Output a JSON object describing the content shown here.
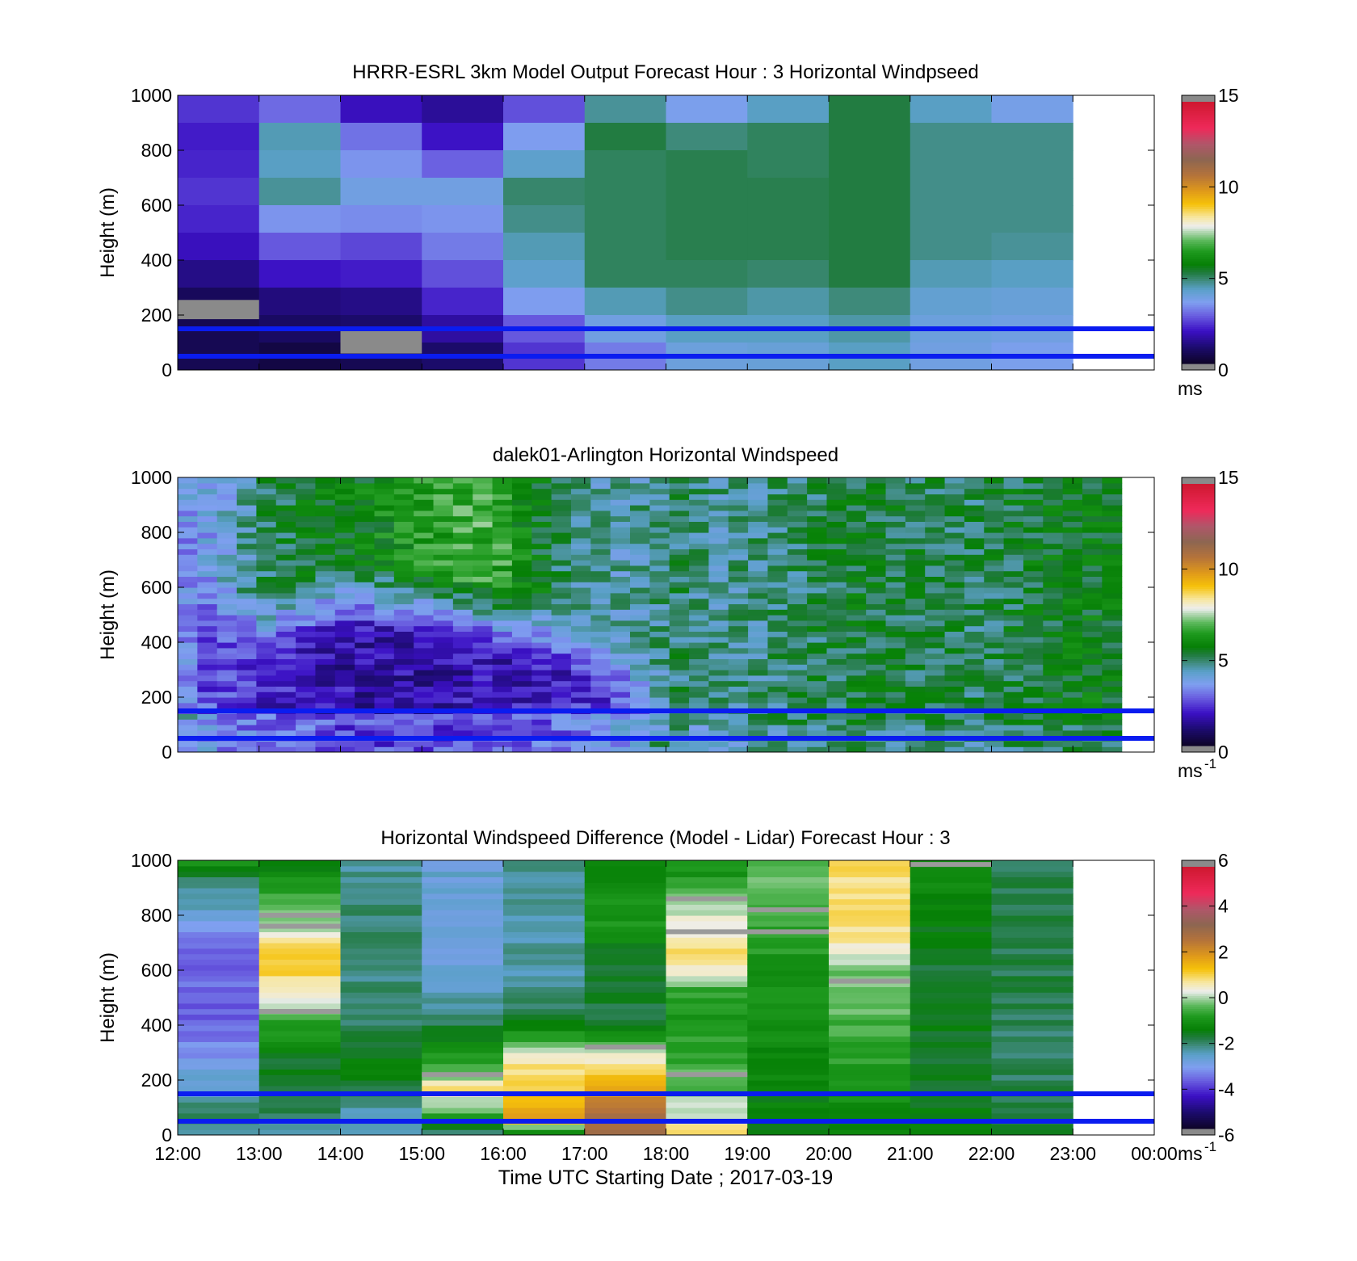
{
  "chart_data": [
    {
      "type": "heatmap",
      "title": "HRRR-ESRL 3km Model Output   Forecast Hour : 3 Horizontal Windpseed",
      "ylabel": "Height (m)",
      "ylim": [
        0,
        1000
      ],
      "yticks": [
        "0",
        "200",
        "400",
        "600",
        "800",
        "1000"
      ],
      "x_categories": [
        "12:00",
        "13:00",
        "14:00",
        "15:00",
        "16:00",
        "17:00",
        "18:00",
        "19:00",
        "20:00",
        "21:00",
        "22:00",
        "23:00"
      ],
      "colorbar": {
        "range": [
          0,
          15
        ],
        "ticks": [
          "0",
          "5",
          "10",
          "15"
        ],
        "unit": "ms",
        "unit_sup": ""
      },
      "reference_lines_m": [
        50,
        150
      ],
      "cells": [
        {
          "y0": 900,
          "y1": 1000,
          "values": [
            2.3,
            2.9,
            1.8,
            1.4,
            2.6,
            4.6,
            3.6,
            4.3,
            5.2,
            4.3,
            3.7
          ]
        },
        {
          "y0": 800,
          "y1": 900,
          "values": [
            2.0,
            4.4,
            3.0,
            1.9,
            3.5,
            5.2,
            4.8,
            5.0,
            5.2,
            4.7,
            4.7
          ]
        },
        {
          "y0": 700,
          "y1": 800,
          "values": [
            2.1,
            4.3,
            3.4,
            2.8,
            4.2,
            5.0,
            5.1,
            5.0,
            5.2,
            4.7,
            4.7
          ]
        },
        {
          "y0": 600,
          "y1": 700,
          "values": [
            2.3,
            4.6,
            3.8,
            3.8,
            4.9,
            5.0,
            5.1,
            5.1,
            5.2,
            4.7,
            4.7
          ]
        },
        {
          "y0": 500,
          "y1": 600,
          "values": [
            2.1,
            3.4,
            3.3,
            3.4,
            4.7,
            5.0,
            5.1,
            5.1,
            5.2,
            4.7,
            4.7
          ]
        },
        {
          "y0": 400,
          "y1": 500,
          "values": [
            1.8,
            2.7,
            2.5,
            3.1,
            4.4,
            5.0,
            5.1,
            5.1,
            5.2,
            4.7,
            4.6
          ]
        },
        {
          "y0": 300,
          "y1": 400,
          "values": [
            1.2,
            1.9,
            2.0,
            2.6,
            4.2,
            5.0,
            5.0,
            4.9,
            5.2,
            4.4,
            4.3
          ]
        },
        {
          "y0": 200,
          "y1": 300,
          "values": [
            0.7,
            1.1,
            1.2,
            2.1,
            3.5,
            4.4,
            4.7,
            4.5,
            4.8,
            4.1,
            4.0
          ]
        },
        {
          "y0": 100,
          "y1": 200,
          "values": [
            0.6,
            0.8,
            0.9,
            1.5,
            2.7,
            3.8,
            4.3,
            4.3,
            4.5,
            3.9,
            3.8
          ]
        },
        {
          "y0": 0,
          "y1": 100,
          "values": [
            0.6,
            0.4,
            0.6,
            0.9,
            2.3,
            3.1,
            3.9,
            4.0,
            4.3,
            3.8,
            3.6
          ]
        }
      ],
      "missing_cells": [
        {
          "col": 0,
          "y0": 185,
          "y1": 255
        },
        {
          "col": 2,
          "y0": 60,
          "y1": 145
        }
      ]
    },
    {
      "type": "heatmap",
      "title": "dalek01-Arlington  Horizontal Windspeed",
      "ylabel": "Height (m)",
      "ylim": [
        0,
        1000
      ],
      "yticks": [
        "0",
        "200",
        "400",
        "600",
        "800",
        "1000"
      ],
      "colorbar": {
        "range": [
          0,
          15
        ],
        "ticks": [
          "0",
          "5",
          "10",
          "15"
        ],
        "unit": "ms",
        "unit_sup": "-1"
      },
      "reference_lines_m": [
        50,
        150
      ],
      "time_columns": 48,
      "time_range_h": [
        12,
        23.6
      ],
      "profile": {
        "boundary_layer_top_m": [
          1000,
          420,
          330,
          330,
          380,
          420,
          440,
          430,
          420,
          410,
          390,
          370,
          340,
          300,
          260,
          200,
          120,
          40
        ],
        "bl_speed": [
          3.4,
          2.6,
          2.3,
          2.1,
          1.9,
          1.8,
          1.6,
          1.6,
          1.6,
          1.6,
          1.7,
          1.7,
          1.8,
          2.0,
          2.2,
          2.6,
          3.2,
          4.4
        ],
        "aloft_speed": [
          4.5,
          3.6,
          4.2,
          5.0,
          5.2,
          5.5,
          5.6,
          5.9,
          6.2,
          6.5,
          6.8,
          6.6,
          5.8,
          5.0,
          4.6,
          4.4,
          4.6,
          4.8
        ],
        "late_speed": [
          5.0,
          4.6,
          4.7,
          4.9,
          5.1,
          5.3,
          5.2,
          5.1,
          5.0,
          5.2,
          5.4,
          5.6,
          5.5
        ]
      }
    },
    {
      "type": "heatmap",
      "title": "Horizontal Windspeed Difference (Model - Lidar) Forecast Hour : 3",
      "xlabel": "Time UTC  Starting Date ; 2017-03-19",
      "ylabel": "Height (m)",
      "ylim": [
        0,
        1000
      ],
      "yticks": [
        "0",
        "200",
        "400",
        "600",
        "800",
        "1000"
      ],
      "x_categories": [
        "12:00",
        "13:00",
        "14:00",
        "15:00",
        "16:00",
        "17:00",
        "18:00",
        "19:00",
        "20:00",
        "21:00",
        "22:00",
        "23:00",
        "00:00"
      ],
      "colorbar": {
        "range": [
          -6,
          6
        ],
        "ticks": [
          "-6",
          "-4",
          "-2",
          "0",
          "2",
          "4",
          "6"
        ],
        "unit": "ms",
        "unit_sup": "-1"
      },
      "reference_lines_m": [
        50,
        150
      ],
      "profiles": [
        {
          "points": [
            [
              0,
              -2.6
            ],
            [
              80,
              -2.0
            ],
            [
              150,
              -2.6
            ],
            [
              250,
              -3.0
            ],
            [
              350,
              -3.5
            ],
            [
              420,
              -3.9
            ],
            [
              520,
              -3.6
            ],
            [
              620,
              -3.9
            ],
            [
              720,
              -3.5
            ],
            [
              820,
              -2.7
            ],
            [
              920,
              -2.1
            ],
            [
              1000,
              -0.9
            ]
          ]
        },
        {
          "points": [
            [
              0,
              -2.4
            ],
            [
              100,
              -2.0
            ],
            [
              200,
              -1.8
            ],
            [
              300,
              -1.5
            ],
            [
              400,
              -0.8
            ],
            [
              480,
              0.2
            ],
            [
              560,
              0.8
            ],
            [
              640,
              1.3
            ],
            [
              700,
              0.7
            ],
            [
              760,
              0.1
            ],
            [
              820,
              -0.3
            ],
            [
              900,
              -0.8
            ],
            [
              1000,
              -1.7
            ]
          ]
        },
        {
          "points": [
            [
              0,
              -2.5
            ],
            [
              100,
              -2.3
            ],
            [
              250,
              -1.3
            ],
            [
              300,
              -1.7
            ],
            [
              400,
              -2.0
            ],
            [
              600,
              -2.2
            ],
            [
              800,
              -2.1
            ],
            [
              1000,
              -2.4
            ]
          ]
        },
        {
          "points": [
            [
              0,
              -2.2
            ],
            [
              100,
              -0.2
            ],
            [
              170,
              0.8
            ],
            [
              230,
              -0.6
            ],
            [
              330,
              -1.2
            ],
            [
              420,
              -2.1
            ],
            [
              600,
              -2.8
            ],
            [
              800,
              -2.7
            ],
            [
              1000,
              -2.8
            ]
          ]
        },
        {
          "points": [
            [
              0,
              -1.8
            ],
            [
              60,
              1.8
            ],
            [
              130,
              1.5
            ],
            [
              200,
              1.0
            ],
            [
              280,
              0.6
            ],
            [
              350,
              -0.6
            ],
            [
              450,
              -2.1
            ],
            [
              600,
              -2.4
            ],
            [
              800,
              -2.4
            ],
            [
              1000,
              -2.3
            ]
          ]
        },
        {
          "points": [
            [
              0,
              2.8
            ],
            [
              60,
              2.8
            ],
            [
              140,
              2.1
            ],
            [
              200,
              1.3
            ],
            [
              270,
              0.7
            ],
            [
              330,
              -0.5
            ],
            [
              420,
              -1.7
            ],
            [
              600,
              -1.8
            ],
            [
              800,
              -0.9
            ],
            [
              1000,
              -1.2
            ]
          ]
        },
        {
          "points": [
            [
              0,
              0.8
            ],
            [
              60,
              0.4
            ],
            [
              150,
              -0.3
            ],
            [
              250,
              -0.5
            ],
            [
              400,
              -1.0
            ],
            [
              520,
              -0.8
            ],
            [
              600,
              0.6
            ],
            [
              680,
              0.9
            ],
            [
              760,
              0.4
            ],
            [
              820,
              0.2
            ],
            [
              900,
              -0.7
            ],
            [
              1000,
              -1.2
            ]
          ]
        },
        {
          "points": [
            [
              0,
              -1.5
            ],
            [
              200,
              -1.4
            ],
            [
              400,
              -1.1
            ],
            [
              600,
              -1.0
            ],
            [
              800,
              -0.6
            ],
            [
              900,
              -0.4
            ],
            [
              1000,
              -0.3
            ]
          ]
        },
        {
          "points": [
            [
              0,
              -1.4
            ],
            [
              200,
              -1.0
            ],
            [
              400,
              -0.5
            ],
            [
              560,
              -0.3
            ],
            [
              620,
              -0.1
            ],
            [
              700,
              0.6
            ],
            [
              800,
              0.8
            ],
            [
              900,
              0.9
            ],
            [
              1000,
              0.9
            ]
          ]
        },
        {
          "points": [
            [
              0,
              -1.4
            ],
            [
              200,
              -1.6
            ],
            [
              400,
              -1.6
            ],
            [
              600,
              -1.7
            ],
            [
              800,
              -1.5
            ],
            [
              1000,
              -1.2
            ]
          ]
        },
        {
          "points": [
            [
              0,
              -1.8
            ],
            [
              200,
              -2.0
            ],
            [
              400,
              -2.0
            ],
            [
              600,
              -1.9
            ],
            [
              800,
              -1.9
            ],
            [
              1000,
              -1.9
            ]
          ]
        }
      ],
      "missing_lines": [
        {
          "col": 1,
          "y": 800
        },
        {
          "col": 1,
          "y": 760
        },
        {
          "col": 1,
          "y": 450
        },
        {
          "col": 3,
          "y": 220
        },
        {
          "col": 5,
          "y": 320
        },
        {
          "col": 6,
          "y": 860
        },
        {
          "col": 6,
          "y": 740
        },
        {
          "col": 6,
          "y": 220
        },
        {
          "col": 7,
          "y": 820
        },
        {
          "col": 7,
          "y": 740
        },
        {
          "col": 8,
          "y": 560
        },
        {
          "col": 9,
          "y": 985
        }
      ]
    }
  ]
}
